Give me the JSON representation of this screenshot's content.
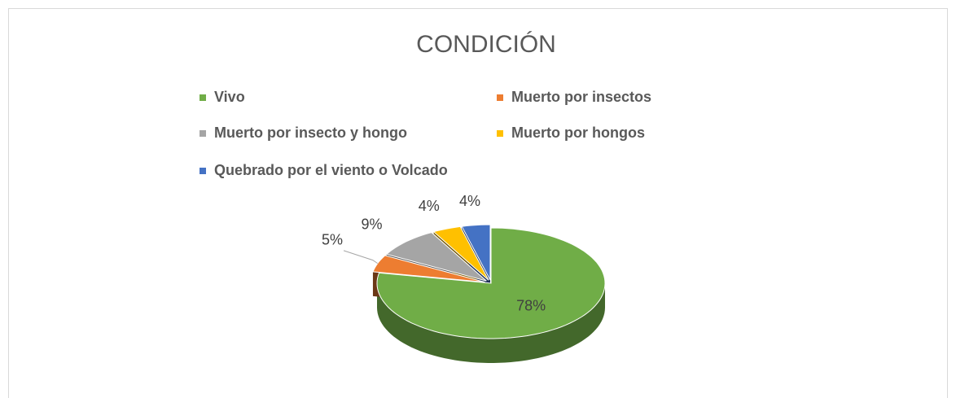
{
  "chart_data": {
    "type": "pie3d",
    "title": "CONDICIÓN",
    "categories": [
      "Vivo",
      "Muerto por insectos",
      "Muerto por insecto y hongo",
      "Muerto por hongos",
      "Quebrado por el viento o Volcado"
    ],
    "values": [
      78,
      5,
      9,
      4,
      4
    ],
    "value_labels": [
      "78%",
      "5%",
      "9%",
      "4%",
      "4%"
    ],
    "colors": [
      "#70ad47",
      "#ed7d31",
      "#a5a5a5",
      "#ffc000",
      "#4472c4"
    ],
    "legend": "top"
  }
}
